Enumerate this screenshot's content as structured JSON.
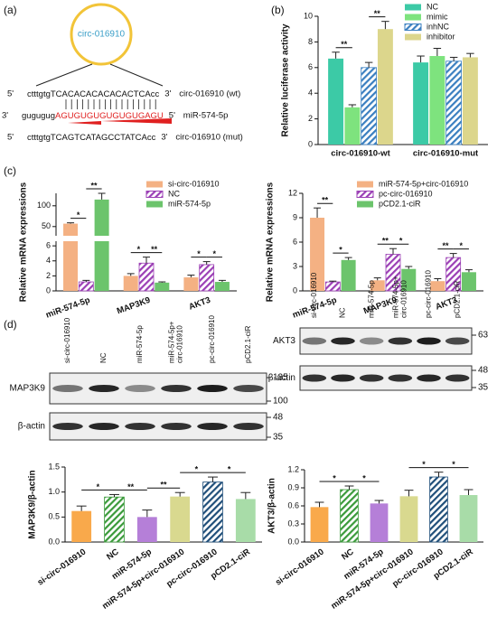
{
  "panels": [
    "(a)",
    "(b)",
    "(c)",
    "(d)"
  ],
  "diagram": {
    "center": "circ-016910",
    "lines": [
      {
        "left": "5'",
        "seq": [
          "ctttgtgTCACACACACACACTCAcc"
        ],
        "right": "3'",
        "name": "circ-016910 (wt)"
      },
      {
        "left": "3'",
        "seq": [
          "gugugug",
          "AGUGUGUGUGUGUGAGU"
        ],
        "right": "5'",
        "name": "miR-574-5p",
        "highlight": "#e02020"
      },
      {
        "left": "5'",
        "seq": [
          "ctttgtgTCAGTCATAGCCTATCAcc"
        ],
        "right": "3'",
        "name": "circ-016910 (mut)"
      }
    ]
  },
  "chart_data": [
    {
      "type": "bar",
      "ylabel": "Relative luciferase activity",
      "categories": [
        "circ-016910-wt",
        "circ-016910-mut"
      ],
      "ylim": [
        0,
        10
      ],
      "yticks": [
        0,
        2,
        4,
        6,
        8,
        10
      ],
      "legend": "top-right",
      "series": [
        {
          "name": "NC",
          "color": "#3ccaa6",
          "values": [
            6.7,
            6.4
          ],
          "errors": [
            0.5,
            0.5
          ]
        },
        {
          "name": "mimic",
          "color": "#7ee37e",
          "values": [
            2.9,
            6.9
          ],
          "errors": [
            0.2,
            0.6
          ]
        },
        {
          "name": "inhNC",
          "color": "#3a7fc0",
          "hatch": true,
          "values": [
            6.0,
            6.5
          ],
          "errors": [
            0.4,
            0.3
          ]
        },
        {
          "name": "inhibitor",
          "color": "#dcd68c",
          "values": [
            9.0,
            6.8
          ],
          "errors": [
            0.6,
            0.3
          ]
        }
      ],
      "significance": [
        {
          "category": 0,
          "bars": [
            0,
            1
          ],
          "label": "**"
        },
        {
          "category": 0,
          "bars": [
            2,
            3
          ],
          "label": "**"
        }
      ]
    },
    {
      "type": "bar",
      "ylabel": "Relative mRNA expressions",
      "categories": [
        "miR-574-5p",
        "MAP3K9",
        "AKT3"
      ],
      "ylim": [
        0,
        130
      ],
      "ybreak": [
        6.5,
        30
      ],
      "yticks": [
        0,
        2,
        4,
        6,
        50,
        100
      ],
      "legend": "top-right",
      "series": [
        {
          "name": "si-circ-016910",
          "color": "#f4b183",
          "values": [
            57,
            2.0,
            1.8
          ],
          "errors": [
            2,
            0.3,
            0.3
          ]
        },
        {
          "name": "NC",
          "color": "#9b3fb5",
          "hatch": true,
          "values": [
            1.2,
            3.7,
            3.5
          ],
          "errors": [
            0.2,
            0.8,
            0.4
          ]
        },
        {
          "name": "miR-574-5p",
          "color": "#6cc46c",
          "values": [
            115,
            1.1,
            1.2
          ],
          "errors": [
            15,
            0.1,
            0.2
          ]
        }
      ],
      "significance": [
        {
          "category": 0,
          "bars": [
            0,
            1
          ],
          "label": "*"
        },
        {
          "category": 0,
          "bars": [
            1,
            2
          ],
          "label": "**"
        },
        {
          "category": 1,
          "bars": [
            0,
            1
          ],
          "label": "*"
        },
        {
          "category": 1,
          "bars": [
            1,
            2
          ],
          "label": "**"
        },
        {
          "category": 2,
          "bars": [
            0,
            1
          ],
          "label": "*"
        },
        {
          "category": 2,
          "bars": [
            1,
            2
          ],
          "label": "*"
        }
      ]
    },
    {
      "type": "bar",
      "ylabel": "Relative mRNA expressions",
      "categories": [
        "miR-574-5p",
        "MAP3K9",
        "AKT3"
      ],
      "ylim": [
        0,
        12
      ],
      "yticks": [
        0,
        3,
        6,
        9,
        12
      ],
      "legend": "top-right",
      "series": [
        {
          "name": "miR-574-5p+circ-016910",
          "color": "#f4b183",
          "values": [
            9.0,
            1.3,
            1.2
          ],
          "errors": [
            1.2,
            0.3,
            0.3
          ]
        },
        {
          "name": "pc-circ-016910",
          "color": "#9b3fb5",
          "hatch": true,
          "values": [
            1.1,
            4.5,
            4.1
          ],
          "errors": [
            0.1,
            0.7,
            0.5
          ]
        },
        {
          "name": "pCD2.1-ciR",
          "color": "#6cc46c",
          "values": [
            3.8,
            2.7,
            2.3
          ],
          "errors": [
            0.3,
            0.3,
            0.3
          ]
        }
      ],
      "significance": [
        {
          "category": 0,
          "bars": [
            0,
            1
          ],
          "label": "**"
        },
        {
          "category": 0,
          "bars": [
            1,
            2
          ],
          "label": "*"
        },
        {
          "category": 1,
          "bars": [
            0,
            1
          ],
          "label": "**"
        },
        {
          "category": 1,
          "bars": [
            1,
            2
          ],
          "label": "*"
        },
        {
          "category": 2,
          "bars": [
            0,
            1
          ],
          "label": "**"
        },
        {
          "category": 2,
          "bars": [
            1,
            2
          ],
          "label": "*"
        }
      ]
    },
    {
      "type": "bar",
      "ylabel": "MAP3K9/β-actin",
      "categories": [
        "si-circ-016910",
        "NC",
        "miR-574-5p",
        "miR-574-5p+circ-016910",
        "pc-circ-016910",
        "pCD2.1-ciR"
      ],
      "ylim": [
        0,
        1.5
      ],
      "yticks": [
        {
          "value": 0,
          "label": "0.0"
        },
        0.5,
        {
          "value": 1,
          "label": "1.0"
        },
        1.5
      ],
      "values": [
        0.62,
        0.9,
        0.5,
        0.91,
        1.2,
        0.86
      ],
      "errors": [
        0.1,
        0.05,
        0.14,
        0.08,
        0.1,
        0.13
      ],
      "colors": [
        "#f9a94b",
        "#3a9a3a",
        "#b57fd8",
        "#d9d98f",
        "#1f4e79",
        "#a8dca8"
      ],
      "hatch": [
        false,
        true,
        false,
        false,
        true,
        false
      ],
      "significance": [
        {
          "bars": [
            0,
            1
          ],
          "label": "*"
        },
        {
          "bars": [
            1,
            2
          ],
          "label": "**"
        },
        {
          "bars": [
            2,
            3
          ],
          "label": "**"
        },
        {
          "bars": [
            3,
            4
          ],
          "label": "*"
        },
        {
          "bars": [
            4,
            5
          ],
          "label": "*"
        }
      ]
    },
    {
      "type": "bar",
      "ylabel": "AKT3/β-actin",
      "categories": [
        "si-circ-016910",
        "NC",
        "miR-574-5p",
        "miR-574-5p+circ-016910",
        "pc-circ-016910",
        "pCD2.1-ciR"
      ],
      "ylim": [
        0,
        1.2
      ],
      "yticks": [
        {
          "value": 0,
          "label": "0.0"
        },
        0.3,
        0.6,
        0.9,
        1.2
      ],
      "values": [
        0.58,
        0.87,
        0.64,
        0.76,
        1.08,
        0.78
      ],
      "errors": [
        0.08,
        0.06,
        0.05,
        0.1,
        0.08,
        0.09
      ],
      "colors": [
        "#f9a94b",
        "#3a9a3a",
        "#b57fd8",
        "#d9d98f",
        "#1f4e79",
        "#a8dca8"
      ],
      "hatch": [
        false,
        true,
        false,
        false,
        true,
        false
      ],
      "significance": [
        {
          "bars": [
            0,
            1
          ],
          "label": "*"
        },
        {
          "bars": [
            1,
            2
          ],
          "label": "*"
        },
        {
          "bars": [
            3,
            4
          ],
          "label": "*"
        },
        {
          "bars": [
            4,
            5
          ],
          "label": "*"
        }
      ]
    }
  ],
  "blots": [
    {
      "lanes": [
        [
          "si-circ-016910"
        ],
        [
          "NC"
        ],
        [
          "miR-574-5p"
        ],
        [
          "miR-574-5p+",
          "circ-016910"
        ],
        [
          "pc-circ-016910"
        ],
        [
          "pCD2.1-ciR"
        ]
      ],
      "rows": [
        {
          "label": "MAP3K9",
          "markers": [
            135,
            100
          ]
        },
        {
          "label": "β-actin",
          "markers": [
            48,
            35
          ]
        }
      ]
    },
    {
      "lanes": [
        [
          "si-circ-016910"
        ],
        [
          "NC"
        ],
        [
          "miR-574-5p"
        ],
        [
          "miR-574-5p+",
          "circ-016910"
        ],
        [
          "pc-circ-016910"
        ],
        [
          "pCD2.1-ciR"
        ]
      ],
      "rows": [
        {
          "label": "AKT3",
          "markers": [
            63
          ]
        },
        {
          "label": "β-actin",
          "markers": [
            48,
            35
          ]
        }
      ]
    }
  ]
}
